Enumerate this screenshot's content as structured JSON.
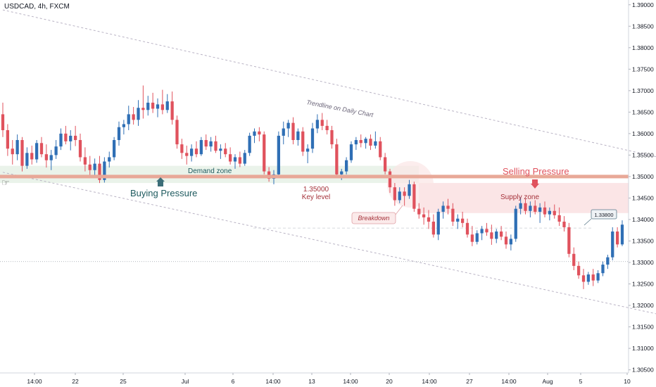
{
  "symbol_label": "USDCAD, 4h, FXCM",
  "colors": {
    "up": "#2f6fb5",
    "down": "#e0525d",
    "key_level": "#e8a898",
    "demand_zone": "#eaf3ea",
    "supply_zone": "#fbe5e6",
    "trendline": "#b9b3c4",
    "arrow": "#3c6e78",
    "selling_text": "#e0525d",
    "demand_text": "#1e5a5e",
    "price_tag_border": "#5a7a8a"
  },
  "annotations": {
    "trendline_label": "Trendline on Daily Chart",
    "demand_zone": "Demand zone",
    "supply_zone": "Supply zone",
    "buying_pressure": "Buying Pressure",
    "selling_pressure": "Selling Pressure",
    "key_level_value": "1.35000",
    "key_level_text": "Key level",
    "breakdown": "Breakdown",
    "price_tag": "1.33800"
  },
  "chart_data": {
    "type": "candlestick",
    "title": "USDCAD, 4h, FXCM",
    "ylim": [
      1.3035,
      1.3905
    ],
    "y_ticks": [
      1.305,
      1.31,
      1.315,
      1.32,
      1.325,
      1.33,
      1.335,
      1.34,
      1.345,
      1.35,
      1.355,
      1.36,
      1.365,
      1.37,
      1.375,
      1.38,
      1.385,
      1.39
    ],
    "x_ticks": [
      "14:00",
      "22",
      "25",
      "Jul",
      "6",
      "14:00",
      "13",
      "14:00",
      "20",
      "14:00",
      "27",
      "14:00",
      "Aug",
      "5",
      "10"
    ],
    "key_level": 1.35,
    "demand_zone": [
      1.3485,
      1.3525
    ],
    "supply_zone": [
      1.3415,
      1.3485
    ],
    "horizontal_line": 1.3302,
    "price_tag_value": 1.338,
    "trendline_daily": [
      [
        0,
        1.3888
      ],
      [
        175,
        1.3445
      ]
    ],
    "trendline_lower": [
      [
        0,
        1.351
      ],
      [
        168,
        1.31
      ]
    ],
    "candles": [
      [
        1.3645,
        1.3672,
        1.3592,
        1.3608
      ],
      [
        1.3608,
        1.3622,
        1.3548,
        1.3565
      ],
      [
        1.3565,
        1.3585,
        1.3528,
        1.3552
      ],
      [
        1.3552,
        1.3598,
        1.3538,
        1.3585
      ],
      [
        1.3585,
        1.3592,
        1.3512,
        1.3525
      ],
      [
        1.3525,
        1.3568,
        1.3518,
        1.3555
      ],
      [
        1.3555,
        1.3572,
        1.3528,
        1.354
      ],
      [
        1.354,
        1.3585,
        1.3532,
        1.3578
      ],
      [
        1.3578,
        1.3592,
        1.3545,
        1.3552
      ],
      [
        1.3552,
        1.3575,
        1.3521,
        1.3538
      ],
      [
        1.3538,
        1.3562,
        1.3515,
        1.355
      ],
      [
        1.355,
        1.3585,
        1.3541,
        1.357
      ],
      [
        1.357,
        1.3612,
        1.3562,
        1.36
      ],
      [
        1.36,
        1.3618,
        1.3575,
        1.3582
      ],
      [
        1.3582,
        1.3608,
        1.3561,
        1.3595
      ],
      [
        1.3595,
        1.3618,
        1.3571,
        1.3585
      ],
      [
        1.3585,
        1.36,
        1.3535,
        1.3545
      ],
      [
        1.3545,
        1.3568,
        1.3512,
        1.3528
      ],
      [
        1.3528,
        1.3548,
        1.3498,
        1.3515
      ],
      [
        1.3515,
        1.3542,
        1.3502,
        1.353
      ],
      [
        1.353,
        1.3548,
        1.3485,
        1.3492
      ],
      [
        1.3492,
        1.3545,
        1.3486,
        1.3535
      ],
      [
        1.3535,
        1.3558,
        1.3521,
        1.3545
      ],
      [
        1.3545,
        1.3592,
        1.3538,
        1.3585
      ],
      [
        1.3585,
        1.3628,
        1.3572,
        1.3615
      ],
      [
        1.3615,
        1.3632,
        1.3598,
        1.3622
      ],
      [
        1.3622,
        1.3665,
        1.3608,
        1.3645
      ],
      [
        1.3645,
        1.3662,
        1.3621,
        1.3632
      ],
      [
        1.3632,
        1.3678,
        1.3618,
        1.366
      ],
      [
        1.366,
        1.3712,
        1.3635,
        1.3655
      ],
      [
        1.3655,
        1.3688,
        1.3642,
        1.3672
      ],
      [
        1.3672,
        1.3695,
        1.3648,
        1.3658
      ],
      [
        1.3658,
        1.3682,
        1.3638,
        1.3668
      ],
      [
        1.3668,
        1.3702,
        1.3645,
        1.3655
      ],
      [
        1.3655,
        1.3692,
        1.3648,
        1.3675
      ],
      [
        1.3675,
        1.3698,
        1.3621,
        1.3632
      ],
      [
        1.3632,
        1.3642,
        1.3565,
        1.3575
      ],
      [
        1.3575,
        1.3588,
        1.3541,
        1.3555
      ],
      [
        1.3555,
        1.3572,
        1.3528,
        1.3548
      ],
      [
        1.3548,
        1.3575,
        1.3535,
        1.3565
      ],
      [
        1.3565,
        1.3582,
        1.3545,
        1.3552
      ],
      [
        1.3552,
        1.3592,
        1.3548,
        1.3585
      ],
      [
        1.3585,
        1.3598,
        1.3562,
        1.357
      ],
      [
        1.357,
        1.3592,
        1.3558,
        1.3582
      ],
      [
        1.3582,
        1.3595,
        1.3555,
        1.356
      ],
      [
        1.356,
        1.3575,
        1.3541,
        1.3565
      ],
      [
        1.3565,
        1.3578,
        1.3545,
        1.3552
      ],
      [
        1.3552,
        1.3568,
        1.3528,
        1.3535
      ],
      [
        1.3535,
        1.3552,
        1.3518,
        1.3545
      ],
      [
        1.3545,
        1.3558,
        1.3522,
        1.353
      ],
      [
        1.353,
        1.3562,
        1.3525,
        1.3555
      ],
      [
        1.3555,
        1.3602,
        1.3548,
        1.3595
      ],
      [
        1.3595,
        1.3612,
        1.3578,
        1.3605
      ],
      [
        1.3605,
        1.3615,
        1.3582,
        1.3598
      ],
      [
        1.3598,
        1.3605,
        1.3505,
        1.3512
      ],
      [
        1.3512,
        1.3522,
        1.3488,
        1.3495
      ],
      [
        1.3495,
        1.3515,
        1.3482,
        1.3505
      ],
      [
        1.3505,
        1.3605,
        1.3498,
        1.3595
      ],
      [
        1.3595,
        1.3628,
        1.3575,
        1.3612
      ],
      [
        1.3612,
        1.3632,
        1.3592,
        1.3625
      ],
      [
        1.3625,
        1.3638,
        1.3575,
        1.3585
      ],
      [
        1.3585,
        1.3612,
        1.3572,
        1.3605
      ],
      [
        1.3605,
        1.3615,
        1.3548,
        1.3558
      ],
      [
        1.3558,
        1.3575,
        1.3531,
        1.3565
      ],
      [
        1.3565,
        1.3625,
        1.3555,
        1.3612
      ],
      [
        1.3612,
        1.3645,
        1.3601,
        1.3632
      ],
      [
        1.3632,
        1.3648,
        1.3608,
        1.3618
      ],
      [
        1.3618,
        1.3632,
        1.3598,
        1.3608
      ],
      [
        1.3608,
        1.3618,
        1.3565,
        1.3575
      ],
      [
        1.3575,
        1.3588,
        1.3498,
        1.3505
      ],
      [
        1.3505,
        1.3518,
        1.3492,
        1.3512
      ],
      [
        1.3512,
        1.3545,
        1.3505,
        1.3538
      ],
      [
        1.3538,
        1.3582,
        1.3532,
        1.3575
      ],
      [
        1.3575,
        1.3592,
        1.3562,
        1.3585
      ],
      [
        1.3585,
        1.3598,
        1.3568,
        1.3578
      ],
      [
        1.3578,
        1.3592,
        1.3565,
        1.3588
      ],
      [
        1.3588,
        1.3598,
        1.3562,
        1.3572
      ],
      [
        1.3572,
        1.3605,
        1.3565,
        1.3582
      ],
      [
        1.3582,
        1.3592,
        1.3538,
        1.3545
      ],
      [
        1.3545,
        1.3555,
        1.3505,
        1.3512
      ],
      [
        1.3512,
        1.3518,
        1.3462,
        1.3475
      ],
      [
        1.3475,
        1.3485,
        1.3432,
        1.3445
      ],
      [
        1.3445,
        1.3475,
        1.3438,
        1.3465
      ],
      [
        1.3465,
        1.3475,
        1.3432,
        1.3455
      ],
      [
        1.3455,
        1.3492,
        1.3448,
        1.3482
      ],
      [
        1.3482,
        1.3488,
        1.3418,
        1.3425
      ],
      [
        1.3425,
        1.3438,
        1.3402,
        1.3412
      ],
      [
        1.3412,
        1.3428,
        1.3388,
        1.3405
      ],
      [
        1.3405,
        1.3422,
        1.3378,
        1.3395
      ],
      [
        1.3395,
        1.3412,
        1.3358,
        1.3365
      ],
      [
        1.3365,
        1.3425,
        1.3352,
        1.3418
      ],
      [
        1.3418,
        1.3442,
        1.3402,
        1.3432
      ],
      [
        1.3432,
        1.3448,
        1.3412,
        1.3425
      ],
      [
        1.3425,
        1.3438,
        1.3385,
        1.3395
      ],
      [
        1.3395,
        1.3412,
        1.3378,
        1.3402
      ],
      [
        1.3402,
        1.3418,
        1.3382,
        1.3392
      ],
      [
        1.3392,
        1.3402,
        1.3358,
        1.3365
      ],
      [
        1.3365,
        1.3385,
        1.3338,
        1.3348
      ],
      [
        1.3348,
        1.3375,
        1.3342,
        1.3368
      ],
      [
        1.3368,
        1.3385,
        1.3352,
        1.3378
      ],
      [
        1.3378,
        1.3392,
        1.3362,
        1.337
      ],
      [
        1.337,
        1.3388,
        1.3341,
        1.3355
      ],
      [
        1.3355,
        1.3378,
        1.3345,
        1.3372
      ],
      [
        1.3372,
        1.3385,
        1.3352,
        1.336
      ],
      [
        1.336,
        1.3372,
        1.3332,
        1.3342
      ],
      [
        1.3342,
        1.3365,
        1.3328,
        1.3355
      ],
      [
        1.3355,
        1.3432,
        1.3348,
        1.3425
      ],
      [
        1.3425,
        1.3452,
        1.3412,
        1.3438
      ],
      [
        1.3438,
        1.3448,
        1.3412,
        1.342
      ],
      [
        1.342,
        1.3442,
        1.3405,
        1.3432
      ],
      [
        1.3432,
        1.3445,
        1.3412,
        1.3418
      ],
      [
        1.3418,
        1.3438,
        1.3392,
        1.3428
      ],
      [
        1.3428,
        1.3442,
        1.3405,
        1.3412
      ],
      [
        1.3412,
        1.3428,
        1.3398,
        1.342
      ],
      [
        1.342,
        1.3435,
        1.3402,
        1.341
      ],
      [
        1.341,
        1.3428,
        1.3385,
        1.3395
      ],
      [
        1.3395,
        1.3408,
        1.3372,
        1.3382
      ],
      [
        1.3382,
        1.3392,
        1.3312,
        1.332
      ],
      [
        1.332,
        1.3335,
        1.3282,
        1.3292
      ],
      [
        1.3292,
        1.3302,
        1.3262,
        1.327
      ],
      [
        1.327,
        1.3285,
        1.3238,
        1.3255
      ],
      [
        1.3255,
        1.3278,
        1.3248,
        1.3272
      ],
      [
        1.3272,
        1.3285,
        1.3245,
        1.3258
      ],
      [
        1.3258,
        1.3282,
        1.3252,
        1.3275
      ],
      [
        1.3275,
        1.3302,
        1.3268,
        1.3295
      ],
      [
        1.3295,
        1.3318,
        1.3285,
        1.3312
      ],
      [
        1.3312,
        1.3382,
        1.3305,
        1.3372
      ],
      [
        1.3372,
        1.3382,
        1.3335,
        1.3342
      ],
      [
        1.3342,
        1.3398,
        1.3338,
        1.3388
      ]
    ]
  }
}
